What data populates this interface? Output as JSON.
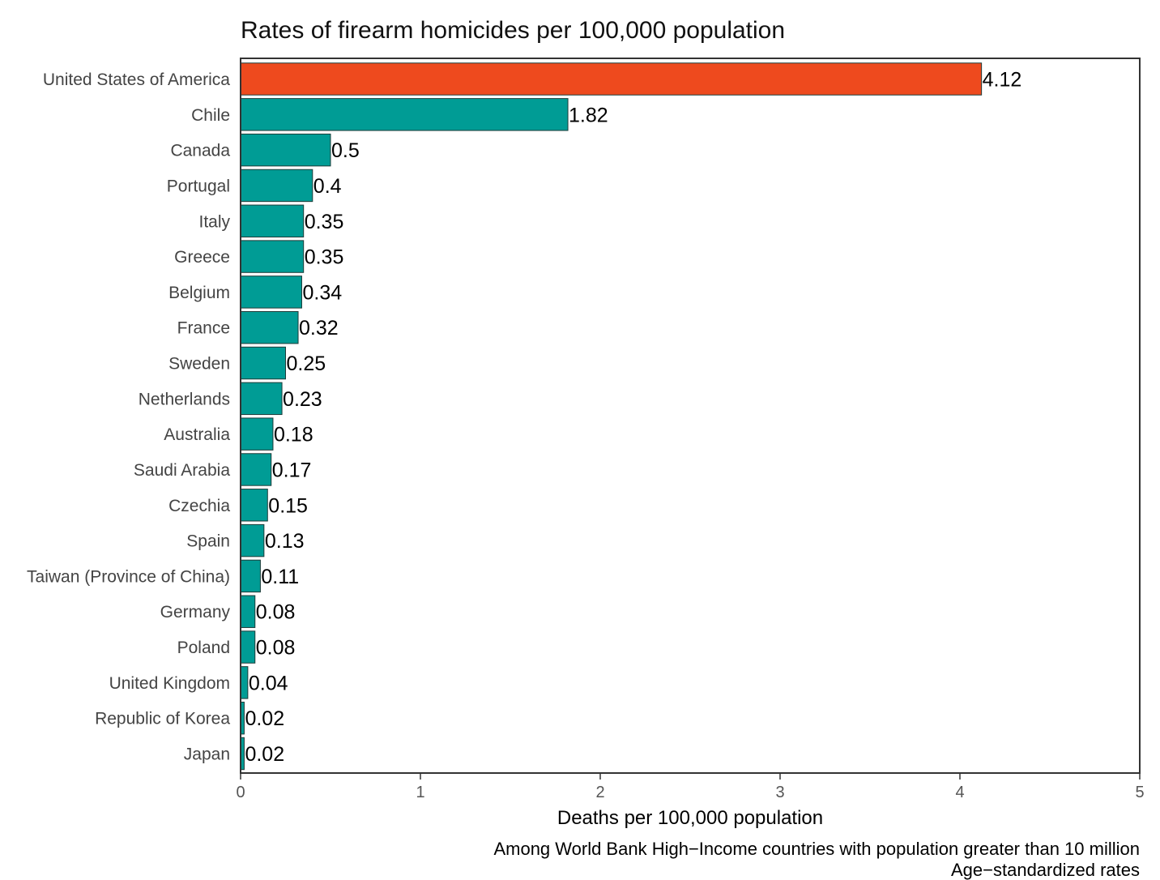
{
  "chart_data": {
    "type": "bar",
    "orientation": "horizontal",
    "title": "Rates of firearm homicides per 100,000 population",
    "xlabel": "Deaths per 100,000 population",
    "ylabel": "",
    "xlim": [
      0,
      5
    ],
    "xticks": [
      0,
      1,
      2,
      3,
      4,
      5
    ],
    "grid": false,
    "categories": [
      "United States of America",
      "Chile",
      "Canada",
      "Portugal",
      "Italy",
      "Greece",
      "Belgium",
      "France",
      "Sweden",
      "Netherlands",
      "Australia",
      "Saudi Arabia",
      "Czechia",
      "Spain",
      "Taiwan (Province of China)",
      "Germany",
      "Poland",
      "United Kingdom",
      "Republic of Korea",
      "Japan"
    ],
    "values": [
      4.12,
      1.82,
      0.5,
      0.4,
      0.35,
      0.35,
      0.34,
      0.32,
      0.25,
      0.23,
      0.18,
      0.17,
      0.15,
      0.13,
      0.11,
      0.08,
      0.08,
      0.04,
      0.02,
      0.02
    ],
    "value_labels": [
      "4.12",
      "1.82",
      "0.5",
      "0.4",
      "0.35",
      "0.35",
      "0.34",
      "0.32",
      "0.25",
      "0.23",
      "0.18",
      "0.17",
      "0.15",
      "0.13",
      "0.11",
      "0.08",
      "0.08",
      "0.04",
      "0.02",
      "0.02"
    ],
    "highlight_category": "United States of America",
    "colors": {
      "highlight": "#ee4a1e",
      "default": "#009c95",
      "bar_edge": "#1d3b38",
      "frame": "#333333"
    },
    "notes": [
      "Among World Bank High−Income countries with population greater than 10 million",
      "Age−standardized rates"
    ]
  }
}
